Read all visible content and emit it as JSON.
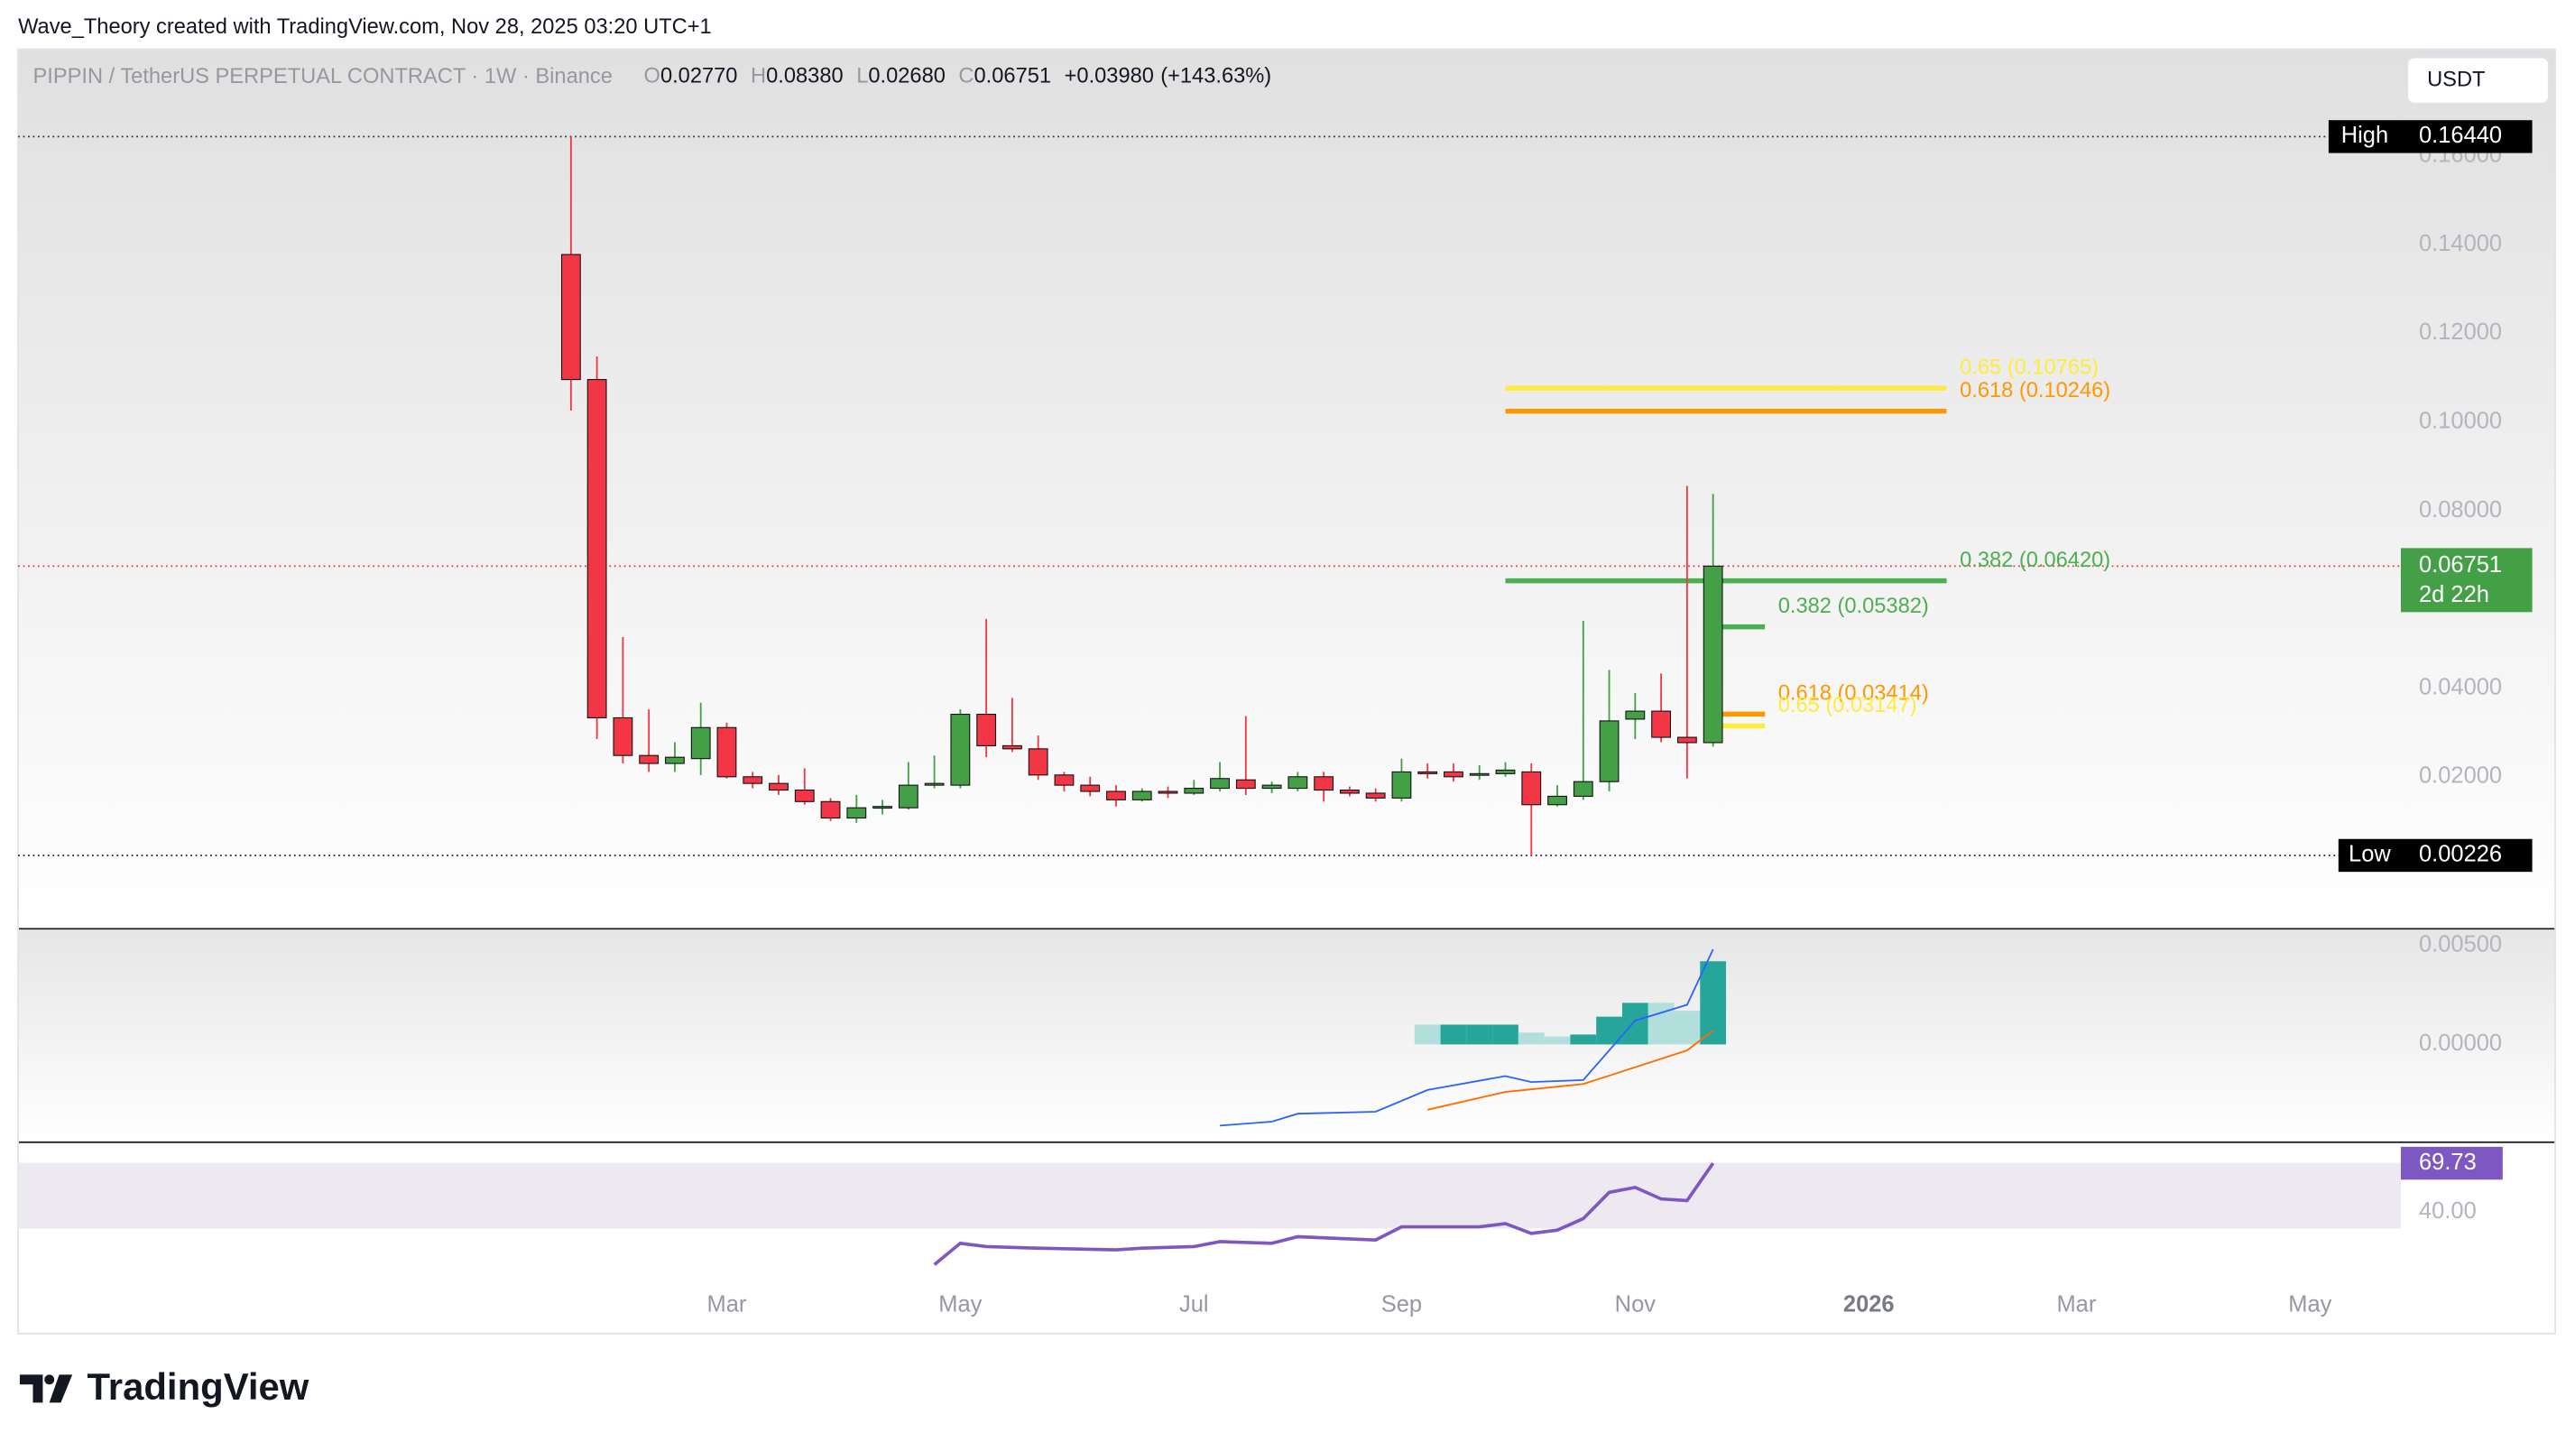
{
  "header": {
    "credit": "Wave_Theory created with TradingView.com, Nov 28, 2025 03:20 UTC+1",
    "symbol": "PIPPIN / TetherUS PERPETUAL CONTRACT · 1W · Binance",
    "ohlc": [
      {
        "key": "O",
        "value": {
          "value": 0.0277,
          "label": "0.02770"
        }
      },
      {
        "key": "H",
        "value": {
          "value": 0.0838,
          "label": "0.08380"
        }
      },
      {
        "key": "L",
        "value": {
          "value": 0.0268,
          "label": "0.02680"
        }
      },
      {
        "key": "C",
        "value": {
          "value": 0.06751,
          "label": "0.06751"
        }
      }
    ],
    "change": {
      "value": 0.0398,
      "label": "+0.03980"
    },
    "change_pct": {
      "value": 143.63,
      "label": "(+143.63%)"
    },
    "currency": "USDT"
  },
  "chart_data": [
    {
      "type": "candlestick",
      "xlim": [
        -21.3,
        70.5
      ],
      "ylim": [
        -0.0141,
        0.1841
      ],
      "yticks": [
        {
          "value": 0.02,
          "label": "0.02000"
        },
        {
          "value": 0.04,
          "label": "0.04000"
        },
        {
          "value": 0.06,
          "label": "0.06000"
        },
        {
          "value": 0.08,
          "label": "0.08000"
        },
        {
          "value": 0.1,
          "label": "0.10000"
        },
        {
          "value": 0.12,
          "label": "0.12000"
        },
        {
          "value": 0.14,
          "label": "0.14000"
        },
        {
          "value": 0.16,
          "label": "0.16000"
        }
      ],
      "xticks": [
        {
          "value": 6,
          "label": "Mar"
        },
        {
          "value": 15,
          "label": "May"
        },
        {
          "value": 24,
          "label": "Jul"
        },
        {
          "value": 32,
          "label": "Sep"
        },
        {
          "value": 41,
          "label": "Nov"
        },
        {
          "value": 50,
          "label": "2026"
        },
        {
          "value": 58,
          "label": "Mar"
        },
        {
          "value": 67,
          "label": "May"
        }
      ],
      "grid": false,
      "up_color": "#43a047",
      "down_color": "#f23645",
      "candles": [
        {
          "open": 0.1378,
          "high": 0.1644,
          "low": 0.1026,
          "close": 0.1096
        },
        {
          "open": 0.1096,
          "high": 0.1148,
          "low": 0.0285,
          "close": 0.0333
        },
        {
          "open": 0.0333,
          "high": 0.0515,
          "low": 0.023,
          "close": 0.0248
        },
        {
          "open": 0.0248,
          "high": 0.0352,
          "low": 0.0211,
          "close": 0.023
        },
        {
          "open": 0.023,
          "high": 0.0278,
          "low": 0.0211,
          "close": 0.0244
        },
        {
          "open": 0.0241,
          "high": 0.0367,
          "low": 0.0204,
          "close": 0.0311
        },
        {
          "open": 0.0311,
          "high": 0.0322,
          "low": 0.0196,
          "close": 0.02
        },
        {
          "open": 0.02,
          "high": 0.0211,
          "low": 0.0174,
          "close": 0.0185
        },
        {
          "open": 0.0185,
          "high": 0.0204,
          "low": 0.0159,
          "close": 0.017
        },
        {
          "open": 0.017,
          "high": 0.0219,
          "low": 0.0137,
          "close": 0.0144
        },
        {
          "open": 0.0144,
          "high": 0.0152,
          "low": 0.01,
          "close": 0.0107
        },
        {
          "open": 0.0107,
          "high": 0.0159,
          "low": 0.0096,
          "close": 0.013
        },
        {
          "open": 0.013,
          "high": 0.0148,
          "low": 0.0115,
          "close": 0.0133
        },
        {
          "open": 0.013,
          "high": 0.0233,
          "low": 0.0126,
          "close": 0.0181
        },
        {
          "open": 0.0181,
          "high": 0.0248,
          "low": 0.0174,
          "close": 0.0185
        },
        {
          "open": 0.0181,
          "high": 0.0352,
          "low": 0.0174,
          "close": 0.0341
        },
        {
          "open": 0.0341,
          "high": 0.0556,
          "low": 0.0244,
          "close": 0.027
        },
        {
          "open": 0.027,
          "high": 0.0378,
          "low": 0.0256,
          "close": 0.0263
        },
        {
          "open": 0.0263,
          "high": 0.0293,
          "low": 0.0193,
          "close": 0.0204
        },
        {
          "open": 0.0204,
          "high": 0.0211,
          "low": 0.0167,
          "close": 0.0181
        },
        {
          "open": 0.0181,
          "high": 0.02,
          "low": 0.0156,
          "close": 0.0167
        },
        {
          "open": 0.0167,
          "high": 0.0181,
          "low": 0.0133,
          "close": 0.0148
        },
        {
          "open": 0.0148,
          "high": 0.0174,
          "low": 0.0144,
          "close": 0.0167
        },
        {
          "open": 0.0167,
          "high": 0.0178,
          "low": 0.0152,
          "close": 0.0163
        },
        {
          "open": 0.0163,
          "high": 0.0193,
          "low": 0.0159,
          "close": 0.0174
        },
        {
          "open": 0.0174,
          "high": 0.0233,
          "low": 0.0167,
          "close": 0.0196
        },
        {
          "open": 0.0193,
          "high": 0.0337,
          "low": 0.0159,
          "close": 0.0174
        },
        {
          "open": 0.0174,
          "high": 0.0189,
          "low": 0.0163,
          "close": 0.0181
        },
        {
          "open": 0.0174,
          "high": 0.0211,
          "low": 0.0167,
          "close": 0.02
        },
        {
          "open": 0.02,
          "high": 0.0211,
          "low": 0.0144,
          "close": 0.017
        },
        {
          "open": 0.017,
          "high": 0.0178,
          "low": 0.0156,
          "close": 0.0163
        },
        {
          "open": 0.0163,
          "high": 0.0174,
          "low": 0.0144,
          "close": 0.0152
        },
        {
          "open": 0.0152,
          "high": 0.0241,
          "low": 0.0144,
          "close": 0.0211
        },
        {
          "open": 0.0211,
          "high": 0.023,
          "low": 0.0196,
          "close": 0.0207
        },
        {
          "open": 0.0211,
          "high": 0.023,
          "low": 0.0189,
          "close": 0.02
        },
        {
          "open": 0.0204,
          "high": 0.0226,
          "low": 0.0193,
          "close": 0.0207
        },
        {
          "open": 0.0207,
          "high": 0.0233,
          "low": 0.02,
          "close": 0.0215
        },
        {
          "open": 0.0211,
          "high": 0.023,
          "low": 0.00226,
          "close": 0.0137
        },
        {
          "open": 0.0137,
          "high": 0.0181,
          "low": 0.0133,
          "close": 0.0156
        },
        {
          "open": 0.0156,
          "high": 0.0552,
          "low": 0.0148,
          "close": 0.0189
        },
        {
          "open": 0.0189,
          "high": 0.0441,
          "low": 0.0167,
          "close": 0.0326
        },
        {
          "open": 0.033,
          "high": 0.0389,
          "low": 0.0285,
          "close": 0.0348
        },
        {
          "open": 0.0348,
          "high": 0.0433,
          "low": 0.0278,
          "close": 0.0289
        },
        {
          "open": 0.0289,
          "high": 0.0856,
          "low": 0.0196,
          "close": 0.0277
        },
        {
          "open": 0.0277,
          "high": 0.0838,
          "low": 0.0268,
          "close": 0.06751
        }
      ],
      "high": {
        "name": "High",
        "value": {
          "value": 0.1644,
          "label": "0.16440"
        }
      },
      "low": {
        "name": "Low",
        "value": {
          "value": 0.00226,
          "label": "0.00226"
        }
      },
      "last": {
        "value": {
          "value": 0.06751,
          "label": "0.06751"
        },
        "countdown": "2d 22h",
        "color": "#43a047"
      },
      "fib": [
        {
          "label": "0.65 (0.10765)",
          "price": 0.10765,
          "color": "#ffeb3b",
          "from": 36,
          "to": 53
        },
        {
          "label": "0.618 (0.10246)",
          "price": 0.10246,
          "color": "#ff9800",
          "from": 36,
          "to": 53
        },
        {
          "label": "0.382 (0.06420)",
          "price": 0.0642,
          "color": "#4caf50",
          "from": 36,
          "to": 53
        },
        {
          "label": "0.382 (0.05382)",
          "price": 0.05382,
          "color": "#4caf50",
          "from": 44,
          "to": 46
        },
        {
          "label": "0.618 (0.03414)",
          "price": 0.03414,
          "color": "#ff9800",
          "from": 44,
          "to": 46
        },
        {
          "label": "0.65 (0.03147)",
          "price": 0.03147,
          "color": "#ffeb3b",
          "from": 44,
          "to": 46
        }
      ]
    },
    {
      "type": "macd",
      "ylim": [
        -0.0049,
        0.0058
      ],
      "yticks": [
        {
          "value": 0,
          "label": "0.00000"
        },
        {
          "value": 0.005,
          "label": "0.00500"
        }
      ],
      "histogram": {
        "x": [
          33,
          34,
          35,
          36,
          37,
          38,
          39,
          40,
          41,
          42,
          43,
          44
        ],
        "values": [
          0.001,
          0.001,
          0.001,
          0.001,
          0.0006,
          0.0004,
          0.0005,
          0.0014,
          0.0021,
          0.0021,
          0.0017,
          0.0042
        ],
        "colors": [
          "#b2dfdb",
          "#26a69a",
          "#26a69a",
          "#26a69a",
          "#b2dfdb",
          "#b2dfdb",
          "#26a69a",
          "#26a69a",
          "#26a69a",
          "#b2dfdb",
          "#b2dfdb",
          "#26a69a"
        ]
      },
      "macd": {
        "x": [
          25,
          27,
          28,
          31,
          33,
          36,
          37,
          39,
          41,
          43,
          44
        ],
        "values": [
          -0.0041,
          -0.0039,
          -0.0035,
          -0.0034,
          -0.0023,
          -0.0016,
          -0.0019,
          -0.0018,
          0.0012,
          0.002,
          0.0048
        ],
        "color": "#2962ff"
      },
      "signal": {
        "x": [
          33,
          36,
          39,
          43,
          44
        ],
        "values": [
          -0.0033,
          -0.0024,
          -0.002,
          -0.0003,
          0.0007
        ],
        "color": "#ff6d00"
      }
    },
    {
      "type": "line",
      "ylim": [
        -5,
        82
      ],
      "yticks": [
        {
          "value": 40,
          "label": "40.00"
        }
      ],
      "band": [
        30,
        70
      ],
      "color": "#7e57c2",
      "x": [
        14,
        15,
        16,
        18,
        21,
        22,
        24,
        25,
        27,
        28,
        31,
        32,
        35,
        36,
        37,
        38,
        39,
        40,
        41,
        42,
        43,
        44
      ],
      "values": [
        8,
        21,
        19,
        18,
        17,
        18,
        19,
        22,
        21,
        25,
        23,
        31,
        31,
        33,
        27,
        29,
        36,
        52,
        55,
        48,
        47,
        69.73
      ]
    }
  ],
  "footer": {
    "logo": "TradingView"
  }
}
